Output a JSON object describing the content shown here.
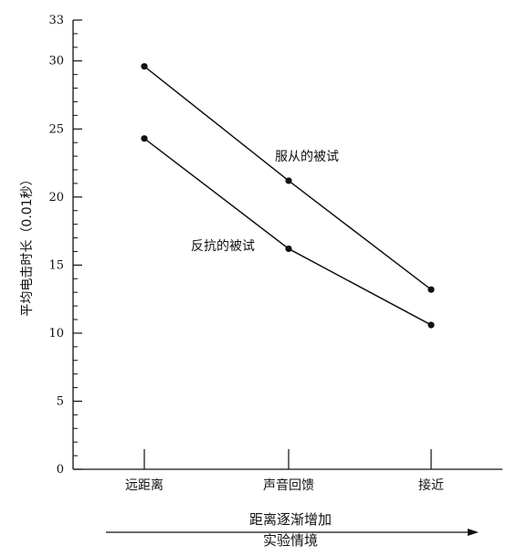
{
  "chart_data": {
    "type": "line",
    "title": "",
    "ylabel": "平均电击时长（0.01秒）",
    "ylim": [
      0,
      33
    ],
    "yticks_major": [
      0,
      5,
      10,
      15,
      20,
      25,
      30,
      33
    ],
    "yticks_minor_step": 1,
    "categories": [
      "远距离",
      "声音回馈",
      "接近"
    ],
    "series": [
      {
        "name": "服从的被试",
        "values": [
          29.6,
          21.2,
          13.2
        ],
        "color": "#111111"
      },
      {
        "name": "反抗的被试",
        "values": [
          24.3,
          16.2,
          10.6
        ],
        "color": "#111111"
      }
    ],
    "caption": {
      "line1": "距离逐渐增加",
      "line2": "实验情境"
    },
    "grid": false
  }
}
